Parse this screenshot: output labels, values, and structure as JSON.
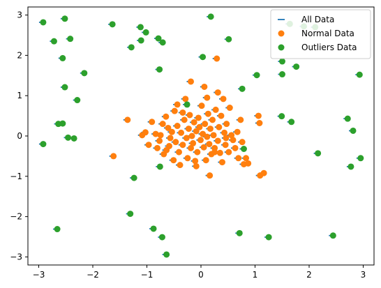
{
  "chart_data": {
    "type": "scatter",
    "xlim": [
      -3.2,
      3.2
    ],
    "ylim": [
      -3.2,
      3.2
    ],
    "xticks": [
      -3,
      -2,
      -1,
      0,
      1,
      2,
      3
    ],
    "yticks": [
      -3,
      -2,
      -1,
      0,
      1,
      2,
      3
    ],
    "grid": false,
    "legend_position": "top-right",
    "series": [
      {
        "name": "All Data",
        "marker": "hline",
        "color": "#1f77b4",
        "note_points": "same points as Normal Data + Outliers Data"
      },
      {
        "name": "Normal Data",
        "marker": "circle",
        "color": "#ff7f0e",
        "points": [
          [
            -1.37,
            0.4
          ],
          [
            -1.63,
            -0.5
          ],
          [
            -1.04,
            0.09
          ],
          [
            -1.1,
            0.02
          ],
          [
            -0.98,
            -0.22
          ],
          [
            -0.92,
            0.35
          ],
          [
            -0.85,
            0.05
          ],
          [
            -0.82,
            -0.3
          ],
          [
            -0.78,
            -0.12
          ],
          [
            -0.76,
            0.02
          ],
          [
            -0.72,
            0.3
          ],
          [
            -0.7,
            -0.45
          ],
          [
            -0.66,
            0.48
          ],
          [
            -0.62,
            0.2
          ],
          [
            -0.6,
            -0.25
          ],
          [
            -0.58,
            -0.05
          ],
          [
            -0.55,
            0.1
          ],
          [
            -0.52,
            -0.6
          ],
          [
            -0.5,
            0.62
          ],
          [
            -0.48,
            -0.15
          ],
          [
            -0.45,
            0.25
          ],
          [
            -0.42,
            -0.4
          ],
          [
            -0.4,
            -0.72
          ],
          [
            -0.38,
            0.08
          ],
          [
            -0.35,
            -0.22
          ],
          [
            -0.32,
            0.4
          ],
          [
            -0.3,
            0.92
          ],
          [
            -0.28,
            -0.05
          ],
          [
            -0.26,
            -0.55
          ],
          [
            -0.24,
            0.18
          ],
          [
            -0.22,
            0.52
          ],
          [
            -0.2,
            -0.3
          ],
          [
            -0.18,
            0.0
          ],
          [
            -0.16,
            -0.18
          ],
          [
            -0.14,
            0.34
          ],
          [
            -0.12,
            -0.62
          ],
          [
            -0.1,
            0.12
          ],
          [
            -0.08,
            -0.4
          ],
          [
            -0.06,
            0.45
          ],
          [
            -0.04,
            0.22
          ],
          [
            -0.02,
            -0.1
          ],
          [
            0.0,
            0.75
          ],
          [
            0.02,
            0.05
          ],
          [
            0.04,
            -0.28
          ],
          [
            0.05,
            1.22
          ],
          [
            0.06,
            0.3
          ],
          [
            0.08,
            -0.6
          ],
          [
            0.1,
            -0.02
          ],
          [
            0.12,
            0.55
          ],
          [
            0.14,
            -0.2
          ],
          [
            0.15,
            -0.98
          ],
          [
            0.16,
            0.18
          ],
          [
            0.18,
            -0.45
          ],
          [
            0.2,
            0.4
          ],
          [
            0.22,
            0.02
          ],
          [
            0.24,
            -0.3
          ],
          [
            0.26,
            0.65
          ],
          [
            0.28,
            1.92
          ],
          [
            0.3,
            -0.12
          ],
          [
            0.3,
            1.08
          ],
          [
            0.32,
            0.22
          ],
          [
            0.34,
            -0.42
          ],
          [
            0.36,
            0.5
          ],
          [
            0.38,
            -0.65
          ],
          [
            0.4,
            0.92
          ],
          [
            0.42,
            0.08
          ],
          [
            0.44,
            -0.22
          ],
          [
            0.46,
            0.3
          ],
          [
            0.5,
            -0.4
          ],
          [
            0.52,
            0.7
          ],
          [
            0.55,
            0.02
          ],
          [
            0.58,
            -0.1
          ],
          [
            0.62,
            -0.3
          ],
          [
            0.66,
            0.1
          ],
          [
            0.68,
            -0.55
          ],
          [
            0.72,
            0.4
          ],
          [
            0.75,
            -0.15
          ],
          [
            0.78,
            -0.7
          ],
          [
            0.82,
            -0.55
          ],
          [
            0.86,
            -0.68
          ],
          [
            1.05,
            0.5
          ],
          [
            1.07,
            0.32
          ],
          [
            1.08,
            -0.98
          ],
          [
            1.15,
            -0.92
          ],
          [
            -0.2,
            1.35
          ],
          [
            -0.45,
            0.78
          ],
          [
            0.24,
            -0.4
          ],
          [
            -0.65,
            -0.35
          ],
          [
            0.1,
            0.95
          ],
          [
            -0.1,
            -0.75
          ],
          [
            -0.35,
            0.58
          ],
          [
            0.45,
            -0.05
          ]
        ]
      },
      {
        "name": "Outliers Data",
        "marker": "circle",
        "color": "#2ca02c",
        "points": [
          [
            -2.93,
            2.82
          ],
          [
            -2.73,
            2.35
          ],
          [
            -2.57,
            1.93
          ],
          [
            -2.53,
            2.91
          ],
          [
            -2.43,
            2.41
          ],
          [
            -2.17,
            1.56
          ],
          [
            -1.65,
            2.77
          ],
          [
            -1.13,
            2.7
          ],
          [
            -1.03,
            2.57
          ],
          [
            -0.8,
            2.42
          ],
          [
            -0.72,
            2.32
          ],
          [
            -1.3,
            2.2
          ],
          [
            -1.12,
            2.37
          ],
          [
            0.02,
            1.96
          ],
          [
            0.17,
            2.96
          ],
          [
            0.5,
            2.4
          ],
          [
            1.63,
            2.78
          ],
          [
            1.89,
            2.72
          ],
          [
            2.1,
            2.7
          ],
          [
            -2.53,
            1.21
          ],
          [
            -2.3,
            0.89
          ],
          [
            -2.65,
            0.3
          ],
          [
            -2.57,
            0.31
          ],
          [
            -2.47,
            -0.04
          ],
          [
            -2.36,
            -0.06
          ],
          [
            -2.93,
            -0.2
          ],
          [
            -0.78,
            1.65
          ],
          [
            1.02,
            1.51
          ],
          [
            0.75,
            1.17
          ],
          [
            1.49,
            1.85
          ],
          [
            1.49,
            1.53
          ],
          [
            1.75,
            1.72
          ],
          [
            2.92,
            1.52
          ],
          [
            1.48,
            0.49
          ],
          [
            1.66,
            0.35
          ],
          [
            2.7,
            0.43
          ],
          [
            2.8,
            0.13
          ],
          [
            -0.27,
            0.78
          ],
          [
            0.78,
            -0.32
          ],
          [
            -0.77,
            -0.76
          ],
          [
            -1.25,
            -1.04
          ],
          [
            2.15,
            -0.43
          ],
          [
            2.94,
            -0.55
          ],
          [
            2.76,
            -0.76
          ],
          [
            -2.67,
            -2.31
          ],
          [
            -1.32,
            -1.93
          ],
          [
            -0.89,
            -2.3
          ],
          [
            -0.73,
            -2.51
          ],
          [
            -0.65,
            -2.94
          ],
          [
            0.7,
            -2.41
          ],
          [
            1.24,
            -2.51
          ],
          [
            2.43,
            -2.47
          ]
        ]
      }
    ]
  }
}
